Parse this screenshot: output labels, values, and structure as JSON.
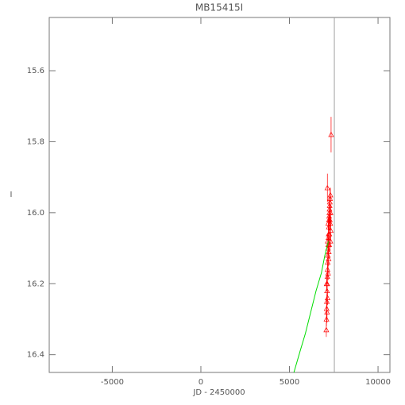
{
  "chart_data": {
    "type": "scatter",
    "title": "MB15415I",
    "x_label": "JD - 2450000",
    "y_label": "I",
    "xlim": [
      -8560,
      10670
    ],
    "ylim": [
      15.45,
      16.45
    ],
    "y_inverted": true,
    "xticks": [
      -5000,
      0,
      5000,
      10000
    ],
    "yticks": [
      15.6,
      15.8,
      16.0,
      16.2,
      16.4
    ],
    "vertical_line_x": 7534,
    "vertical_line_color": "#a0a0a0",
    "series": [
      {
        "color": "#ff0000",
        "marker": "triangle",
        "x": [
          7080,
          7090,
          7100,
          7110,
          7120,
          7130,
          7140,
          7150,
          7160,
          7170,
          7180,
          7190,
          7200,
          7210,
          7220,
          7230,
          7240,
          7250,
          7260,
          7270,
          7280,
          7290,
          7300,
          7310,
          7320,
          7330,
          7100,
          7140,
          7160,
          7190,
          7220,
          7250,
          7280,
          7310,
          7120,
          7150,
          7180,
          7210,
          7240,
          7350
        ],
        "y": [
          16.33,
          16.3,
          16.27,
          16.25,
          16.22,
          16.2,
          16.18,
          16.16,
          16.14,
          16.12,
          16.1,
          16.09,
          16.07,
          16.06,
          16.04,
          16.02,
          16.01,
          16.0,
          15.99,
          15.98,
          15.97,
          15.96,
          16.03,
          15.95,
          16.0,
          16.05,
          16.2,
          15.93,
          16.08,
          16.03,
          16.11,
          16.06,
          16.02,
          16.08,
          16.28,
          16.24,
          16.17,
          16.13,
          16.09,
          15.78
        ],
        "errors": [
          0.02,
          0.02,
          0.03,
          0.02,
          0.02,
          0.03,
          0.02,
          0.02,
          0.02,
          0.03,
          0.02,
          0.02,
          0.02,
          0.03,
          0.02,
          0.02,
          0.02,
          0.03,
          0.02,
          0.02,
          0.02,
          0.03,
          0.02,
          0.02,
          0.02,
          0.03,
          0.02,
          0.04,
          0.02,
          0.02,
          0.02,
          0.02,
          0.02,
          0.02,
          0.03,
          0.02,
          0.02,
          0.02,
          0.02,
          0.05
        ]
      },
      {
        "color": "#00dd00",
        "marker": "line",
        "x": [
          5250,
          5600,
          5900,
          6200,
          6500,
          6800,
          7000,
          7200
        ],
        "y": [
          16.45,
          16.39,
          16.34,
          16.28,
          16.22,
          16.17,
          16.12,
          16.08
        ]
      }
    ]
  }
}
